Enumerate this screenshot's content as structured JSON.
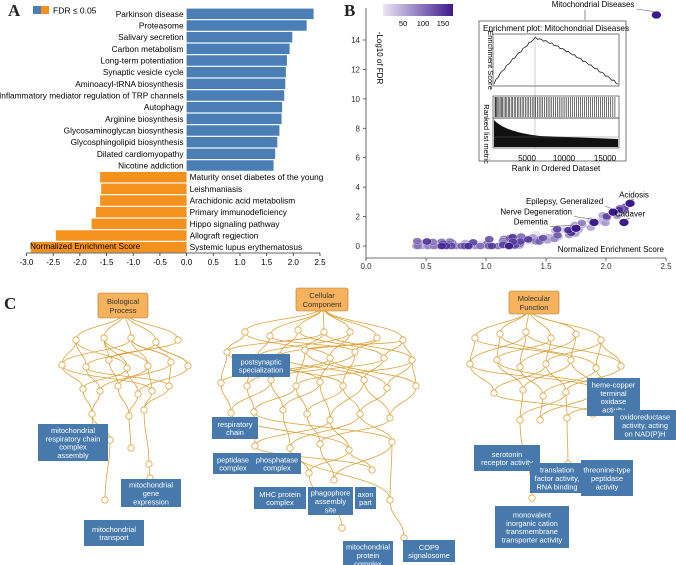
{
  "panels": {
    "a": "A",
    "b": "B",
    "c": "C"
  },
  "colors": {
    "positive": "#4a7eb5",
    "negative": "#f5921e",
    "go_edge": "#dca23a",
    "go_root": "#f6b25d",
    "go_term": "#4779ad"
  },
  "chart_data": [
    {
      "type": "bar",
      "orientation": "horizontal",
      "legend": {
        "label": "FDR ≤ 0.05",
        "placement": "top-left"
      },
      "xlabel": "Normalized Enrichment Score",
      "xlim": [
        -3.0,
        2.5
      ],
      "xticks": [
        "-3.0",
        "-2.5",
        "-2.0",
        "-1.5",
        "-1.0",
        "-0.5",
        "0.0",
        "0.5",
        "1.0",
        "1.5",
        "2.0",
        "2.5"
      ],
      "categories": [
        "Parkinson disease",
        "Proteasome",
        "Salivary secretion",
        "Carbon metabolism",
        "Long-term potentiation",
        "Synaptic vesicle cycle",
        "Aminoacyl-tRNA biosynthesis",
        "Inflammatory mediator regulation of TRP channels",
        "Autophagy",
        "Arginine biosynthesis",
        "Glycosaminoglycan biosynthesis",
        "Glycosphingolipid biosynthesis",
        "Dilated cardiomyopathy",
        "Nicotine addiction",
        "Maturity onset diabetes of the young",
        "Leishmaniasis",
        "Arachidonic acid metabolism",
        "Primary immunodeficiency",
        "Hippo signaling pathway",
        "Allograft regjection",
        "Systemic lupus erythematosus"
      ],
      "values": [
        2.38,
        2.25,
        1.98,
        1.93,
        1.88,
        1.86,
        1.85,
        1.83,
        1.79,
        1.78,
        1.74,
        1.7,
        1.66,
        1.63,
        -1.62,
        -1.6,
        -1.62,
        -1.7,
        -1.78,
        -2.45,
        -2.92
      ]
    },
    {
      "type": "scatter",
      "xlabel": "Normalized Enrichment Score",
      "ylabel": "-Log10 of FDR",
      "xlim": [
        0.0,
        2.5
      ],
      "ylim": [
        0,
        15
      ],
      "xticks": [
        "0.0",
        "0.5",
        "1.0",
        "1.5",
        "2.0",
        "2.5"
      ],
      "yticks": [
        "0",
        "2",
        "4",
        "6",
        "8",
        "10",
        "12",
        "14"
      ],
      "colorbar": {
        "ticks": [
          "50",
          "100",
          "150"
        ],
        "low": "#ebe6f5",
        "high": "#3d1a8c"
      },
      "labeled_points": [
        {
          "label": "Mitochondrial Diseases",
          "x": 2.42,
          "y": 15.7
        },
        {
          "label": "Acidosis",
          "x": 2.2,
          "y": 2.9
        },
        {
          "label": "Epilepsy, Generalized",
          "x": 2.06,
          "y": 2.3
        },
        {
          "label": "Cadaver",
          "x": 2.15,
          "y": 1.6
        },
        {
          "label": "Nerve Degeneration",
          "x": 1.9,
          "y": 1.6
        },
        {
          "label": "Dementia",
          "x": 1.75,
          "y": 1.2
        }
      ],
      "inset": {
        "title": "Enrichment plot: Mitochondrial Diseases",
        "ylabel_top": "Enrichment Score",
        "ylabel_bottom": "Ranked list metric",
        "xlabel": "Rank in Ordered Dataset",
        "xticks": [
          "5000",
          "10000",
          "15000"
        ]
      }
    }
  ],
  "go_graphs": [
    {
      "root": "Biological\nProcess",
      "terms": [
        "mitochondrial\nrespiratory chain\ncomplex\nassembly",
        "mitochondrial\ngene\nexpression",
        "mitochondrial\ntransport"
      ]
    },
    {
      "root": "Cellular\nComponent",
      "terms": [
        "postsynaptic\nspecialization",
        "respiratory\nchain",
        "peptidase\ncomplex",
        "phosphatase\ncomplex",
        "MHC protein\ncomplex",
        "phagophore\nassembly\nsite",
        "axon\npart",
        "mitochondrial\nprotein\ncomplex",
        "COP9\nsignalosome"
      ]
    },
    {
      "root": "Molecular\nFunction",
      "terms": [
        "serotonin\nreceptor activity",
        "translation\nfactor activity,\nRNA binding",
        "threonine-type\npeptidase\nactivity",
        "heme-copper\nterminal\noxidase\nactivity",
        "oxidoreductase\nactivity, acting\non NAD(P)H",
        "monovalent\ninorganic cation\ntransmembrane\ntransporter activity"
      ]
    }
  ]
}
